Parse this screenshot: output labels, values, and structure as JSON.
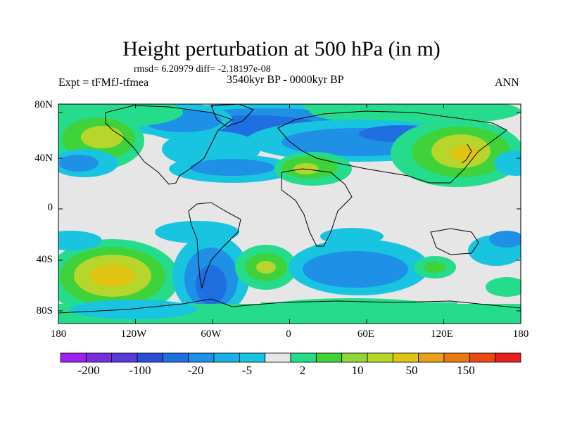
{
  "map": {
    "title": "Height perturbation at 500 hPa (in m)",
    "stats": "rmsd= 6.20979 diff= -2.18197e-08",
    "experiment": "Expt = tFMfJ-tfmea",
    "period": "3540kyr BP - 0000kyr BP",
    "season": "ANN",
    "lat_labels": [
      "80N",
      "40N",
      "0",
      "40S",
      "80S"
    ],
    "lon_labels": [
      "180",
      "120W",
      "60W",
      "0",
      "60E",
      "120E",
      "180"
    ]
  },
  "colorbar": {
    "labels": [
      "-200",
      "-100",
      "-20",
      "-5",
      "2",
      "10",
      "50",
      "150"
    ],
    "colors": [
      "#a020f0",
      "#7b2ee0",
      "#5a3ad8",
      "#2a4fd6",
      "#1f6fe0",
      "#1e90e6",
      "#19b0e6",
      "#19c4e0",
      "#e6e6e6",
      "#25dc8c",
      "#3fd23a",
      "#8ed63a",
      "#b6d62c",
      "#e0c414",
      "#e8a018",
      "#e87a14",
      "#e84a14",
      "#e61e1e"
    ]
  },
  "palette": {
    "neutral": "#e6e6e6",
    "light_blue": "#19c4e0",
    "mid_blue": "#1e90e6",
    "blue": "#1f6fe0",
    "teal": "#25dc8c",
    "green": "#3fd23a",
    "yellow_green": "#b6d62c",
    "yellow": "#e0c414",
    "orange": "#e8a018",
    "red": "#e84a14",
    "coast": "#000000"
  }
}
